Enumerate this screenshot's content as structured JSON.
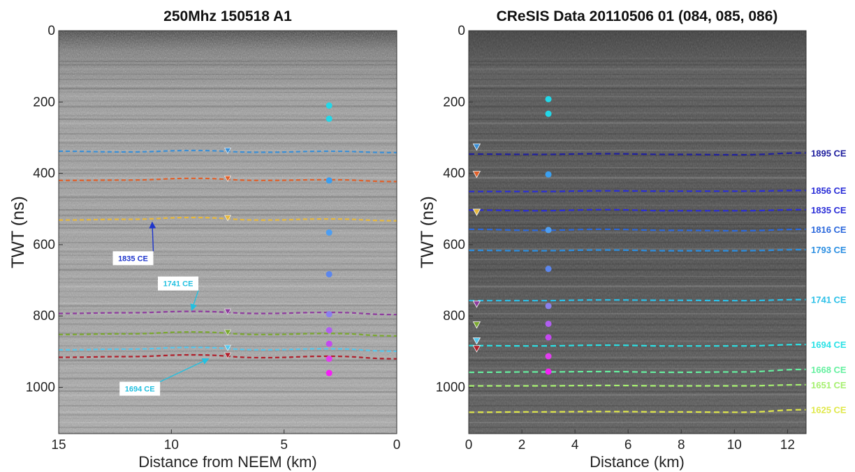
{
  "chart_data": [
    {
      "type": "scatter",
      "title": "250Mhz 150518 A1",
      "xlabel": "Distance from NEEM (km)",
      "ylabel": "TWT (ns)",
      "xlim": [
        15,
        0
      ],
      "ylim": [
        0,
        1130
      ],
      "x_reversed": true,
      "y_reversed": true,
      "xticks": [
        "15",
        "10",
        "5",
        "0"
      ],
      "yticks": [
        "0",
        "200",
        "400",
        "600",
        "800",
        "1000"
      ],
      "background": "radargram",
      "horizons": [
        {
          "color": "#3a8fd6",
          "y": [
            338,
            340,
            336,
            341,
            338,
            342
          ],
          "marker_x": 7.5
        },
        {
          "color": "#e0602a",
          "y": [
            420,
            419,
            414,
            420,
            418,
            423
          ],
          "marker_x": 7.5
        },
        {
          "color": "#e8b83a",
          "y": [
            531,
            529,
            524,
            531,
            528,
            533
          ],
          "marker_x": 7.5
        },
        {
          "color": "#8e3a9e",
          "y": [
            793,
            791,
            787,
            793,
            790,
            796
          ],
          "marker_x": 7.5
        },
        {
          "color": "#7aa82e",
          "y": [
            852,
            850,
            845,
            852,
            849,
            856
          ],
          "marker_x": 7.5
        },
        {
          "color": "#55c8ee",
          "y": [
            895,
            893,
            888,
            895,
            892,
            899
          ],
          "marker_x": 7.5
        },
        {
          "color": "#b01e2a",
          "y": [
            916,
            914,
            909,
            917,
            913,
            920
          ],
          "marker_x": 7.5
        }
      ],
      "points": [
        {
          "x": 3,
          "y": 210,
          "color": "#22d8e8"
        },
        {
          "x": 3,
          "y": 247,
          "color": "#22d8e8"
        },
        {
          "x": 3,
          "y": 420,
          "color": "#3a9ff0"
        },
        {
          "x": 3,
          "y": 566,
          "color": "#4d9ef2"
        },
        {
          "x": 3,
          "y": 683,
          "color": "#5b86ee"
        },
        {
          "x": 3,
          "y": 795,
          "color": "#8a80ee"
        },
        {
          "x": 3,
          "y": 840,
          "color": "#b05ef0"
        },
        {
          "x": 3,
          "y": 878,
          "color": "#c448f0"
        },
        {
          "x": 3,
          "y": 920,
          "color": "#e23ef0"
        },
        {
          "x": 3,
          "y": 960,
          "color": "#f51ef5"
        }
      ],
      "annotations": [
        {
          "text": "1835 CE",
          "color": "#1e35cc",
          "box_x": 11.7,
          "box_y": 638,
          "arrow_x": 10.85,
          "arrow_y": 537
        },
        {
          "text": "1741 CE",
          "color": "#22c0e0",
          "box_x": 9.7,
          "box_y": 709,
          "arrow_x": 9.1,
          "arrow_y": 784
        },
        {
          "text": "1694 CE",
          "color": "#22c0e0",
          "box_x": 11.4,
          "box_y": 1004,
          "arrow_x": 8.35,
          "arrow_y": 920
        }
      ]
    },
    {
      "type": "scatter",
      "title": "CReSIS Data 20110506 01 (084, 085, 086)",
      "xlabel": "Distance (km)",
      "ylabel": "TWT (ns)",
      "xlim": [
        0,
        12.7
      ],
      "ylim": [
        0,
        1130
      ],
      "y_reversed": true,
      "xticks": [
        "0",
        "2",
        "4",
        "6",
        "8",
        "10",
        "12"
      ],
      "yticks": [
        "0",
        "200",
        "400",
        "600",
        "800",
        "1000"
      ],
      "background": "radargram",
      "horizons": [
        {
          "label": "1895 CE",
          "color": "#20209e",
          "y": [
            346,
            347,
            345,
            347,
            348,
            343
          ]
        },
        {
          "label": "1856 CE",
          "color": "#2a2ed8",
          "y": [
            451,
            451,
            449,
            450,
            450,
            448
          ]
        },
        {
          "label": "1835 CE",
          "color": "#2a2ed8",
          "y": [
            503,
            505,
            502,
            505,
            505,
            502
          ]
        },
        {
          "label": "1816 CE",
          "color": "#2c69dc",
          "y": [
            557,
            560,
            557,
            560,
            561,
            557
          ]
        },
        {
          "label": "1793 CE",
          "color": "#2c8fe2",
          "y": [
            616,
            617,
            615,
            617,
            617,
            614
          ]
        },
        {
          "label": "1741 CE",
          "color": "#2cc0e8",
          "y": [
            757,
            757,
            755,
            756,
            757,
            754
          ]
        },
        {
          "label": "1694 CE",
          "color": "#2ce2e6",
          "y": [
            883,
            884,
            882,
            884,
            884,
            880
          ]
        },
        {
          "label": "1668 CE",
          "color": "#66f0a0",
          "y": [
            958,
            957,
            956,
            958,
            957,
            950
          ]
        },
        {
          "label": "1651 CE",
          "color": "#a6f070",
          "y": [
            996,
            996,
            995,
            996,
            996,
            993
          ]
        },
        {
          "label": "1625 CE",
          "color": "#e0e84a",
          "y": [
            1070,
            1069,
            1068,
            1069,
            1070,
            1063
          ]
        }
      ],
      "markers": [
        {
          "x": 0.3,
          "y": 327,
          "color": "#3a8fd6"
        },
        {
          "x": 0.3,
          "y": 404,
          "color": "#e0602a"
        },
        {
          "x": 0.3,
          "y": 510,
          "color": "#e8b83a"
        },
        {
          "x": 0.3,
          "y": 768,
          "color": "#8e3a9e"
        },
        {
          "x": 0.3,
          "y": 826,
          "color": "#7aa82e"
        },
        {
          "x": 0.3,
          "y": 871,
          "color": "#55c8ee"
        },
        {
          "x": 0.3,
          "y": 893,
          "color": "#b01e2a"
        }
      ],
      "points": [
        {
          "x": 3,
          "y": 192,
          "color": "#22d8e8"
        },
        {
          "x": 3,
          "y": 233,
          "color": "#22d8e8"
        },
        {
          "x": 3,
          "y": 403,
          "color": "#3a9ff0"
        },
        {
          "x": 3,
          "y": 559,
          "color": "#4d9ef2"
        },
        {
          "x": 3,
          "y": 668,
          "color": "#5b86ee"
        },
        {
          "x": 3,
          "y": 772,
          "color": "#8a80ee"
        },
        {
          "x": 3,
          "y": 822,
          "color": "#b05ef0"
        },
        {
          "x": 3,
          "y": 860,
          "color": "#c448f0"
        },
        {
          "x": 3,
          "y": 913,
          "color": "#e23ef0"
        },
        {
          "x": 3,
          "y": 956,
          "color": "#f51ef5"
        }
      ]
    }
  ]
}
